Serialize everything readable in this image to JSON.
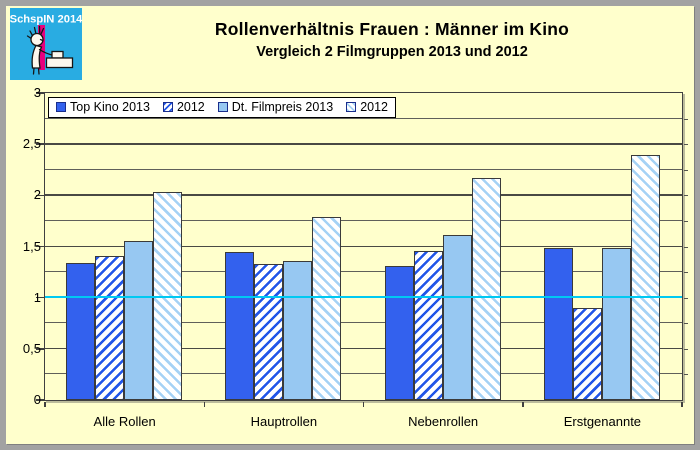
{
  "logo": {
    "text": "SchspIN 2014"
  },
  "chart_data": {
    "type": "bar",
    "title": "Rollenverhältnis Frauen : Männer im Kino",
    "subtitle": "Vergleich 2 Filmgruppen 2013 und 2012",
    "categories": [
      "Alle Rollen",
      "Hauptrollen",
      "Nebenrollen",
      "Erstgenannte"
    ],
    "series": [
      {
        "name": "Top Kino 2013",
        "pattern": "solid",
        "color": "#3361EE",
        "values": [
          1.33,
          1.44,
          1.3,
          1.48
        ]
      },
      {
        "name": "2012",
        "pattern": "hatch-forward",
        "color": "#2256E8",
        "values": [
          1.4,
          1.32,
          1.45,
          0.89
        ]
      },
      {
        "name": "Dt. Filmpreis 2013",
        "pattern": "solid",
        "color": "#97C8F2",
        "values": [
          1.55,
          1.35,
          1.61,
          1.48
        ]
      },
      {
        "name": "2012",
        "pattern": "hatch-backward",
        "color": "#A5D2F5",
        "values": [
          2.03,
          1.78,
          2.16,
          2.39
        ]
      }
    ],
    "ylim": [
      0,
      3
    ],
    "ytick_values": [
      0,
      0.5,
      1,
      1.5,
      2,
      2.5,
      3
    ],
    "ytick_labels": [
      "0",
      "0,5",
      "1",
      "1,5",
      "2",
      "2,5",
      "3"
    ],
    "minor_grid_step": 0.25,
    "grid": true,
    "reference_line": {
      "value": 1,
      "color": "#00C9F2"
    },
    "legend_position": "top-left-inside",
    "xlabel": "",
    "ylabel": ""
  },
  "colors": {
    "canvas_background": "#FFFFCC",
    "frame_gray": "#A2A2A2",
    "solid_dark_blue": "#3361EE",
    "hatch_dark_blue": "#2256E8",
    "solid_light_blue": "#97C8F2",
    "hatch_light_blue": "#A5D2F5",
    "reference_cyan": "#00C9F2",
    "logo_cyan": "#29ACE2",
    "logo_magenta": "#E8007D"
  }
}
